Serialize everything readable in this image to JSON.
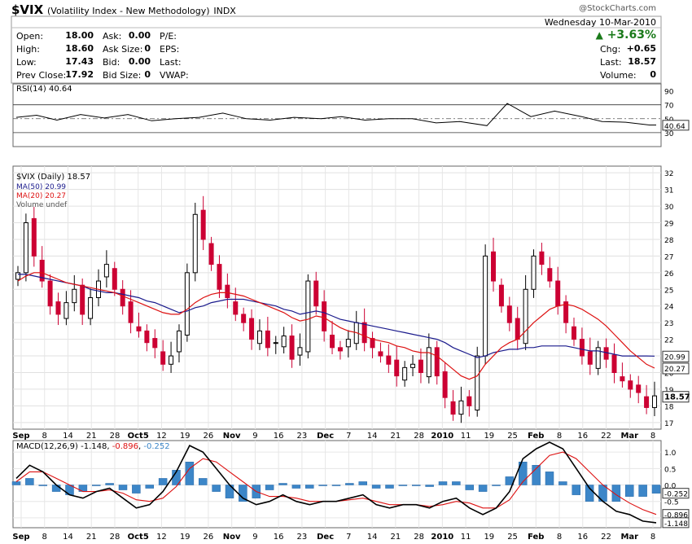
{
  "header": {
    "symbol": "$VIX",
    "name": "(Volatility Index - New Methodology)",
    "exchange": "INDX",
    "brand": "@StockCharts.com",
    "date": "Wednesday  10-Mar-2010",
    "change_pct": "+3.63%",
    "quote_left": [
      {
        "label": "Open:",
        "value": "18.00"
      },
      {
        "label": "High:",
        "value": "18.60"
      },
      {
        "label": "Low:",
        "value": "17.43"
      },
      {
        "label": "Prev Close:",
        "value": "17.92"
      }
    ],
    "quote_mid": [
      {
        "label": "Ask:",
        "value": "0.00"
      },
      {
        "label": "Ask Size:",
        "value": "0"
      },
      {
        "label": "Bid:",
        "value": "0.00"
      },
      {
        "label": "Bid Size:",
        "value": "0"
      }
    ],
    "quote_mid2": [
      "P/E:",
      "EPS:",
      "Last:",
      "VWAP:"
    ],
    "quote_right": [
      {
        "label": "Chg:",
        "value": "+0.65"
      },
      {
        "label": "Last:",
        "value": "18.57"
      },
      {
        "label": "Volume:",
        "value": "0"
      }
    ]
  },
  "colors": {
    "up": "#000000",
    "down": "#cc0033",
    "ma50": "#1a1a8c",
    "ma20": "#dd1111",
    "macd": "#000000",
    "signal": "#dd1111",
    "hist": "#3c86c8",
    "rsi": "#000000"
  },
  "chart_data": [
    {
      "type": "line",
      "title": "RSI(14) 40.64",
      "ylim": [
        10,
        100
      ],
      "yticks": [
        90,
        70,
        50,
        30
      ],
      "levels": [
        70,
        50,
        30
      ],
      "last_label": "40.64",
      "x": [
        "2009-09-02",
        "2009-09-08",
        "2009-09-14",
        "2009-09-21",
        "2009-09-28",
        "2009-10-05",
        "2009-10-12",
        "2009-10-19",
        "2009-10-26",
        "2009-11-02",
        "2009-11-09",
        "2009-11-16",
        "2009-11-23",
        "2009-12-01",
        "2009-12-07",
        "2009-12-14",
        "2009-12-21",
        "2009-12-28",
        "2010-01-04",
        "2010-01-11",
        "2010-01-19",
        "2010-01-25",
        "2010-02-01",
        "2010-02-08",
        "2010-02-16",
        "2010-02-22",
        "2010-03-01",
        "2010-03-08",
        "2010-03-10"
      ],
      "values": [
        52,
        55,
        48,
        56,
        51,
        56,
        47,
        50,
        52,
        58,
        50,
        48,
        52,
        50,
        53,
        48,
        50,
        50,
        44,
        46,
        40,
        72,
        53,
        61,
        53,
        46,
        45,
        41,
        41
      ]
    },
    {
      "type": "candlestick",
      "title": "$VIX (Daily) 18.57",
      "ylim": [
        16.6,
        32.4
      ],
      "yticks": [
        17,
        18,
        19,
        20,
        21,
        22,
        23,
        24,
        25,
        26,
        27,
        28,
        29,
        30,
        31,
        32
      ],
      "legend": [
        {
          "name": "MA(50) 20.99",
          "color": "#1a1a8c"
        },
        {
          "name": "MA(20) 20.27",
          "color": "#dd1111"
        },
        {
          "name": "Volume undef",
          "color": "#555555"
        }
      ],
      "value_labels": [
        {
          "text": "20.99",
          "value": 20.99
        },
        {
          "text": "20.27",
          "value": 20.27
        },
        {
          "text": "18.57",
          "value": 18.57
        }
      ],
      "x_labels": [
        "Sep",
        "8",
        "14",
        "21",
        "28",
        "Oct5",
        "12",
        "19",
        "26",
        "Nov",
        "9",
        "16",
        "23",
        "Dec",
        "7",
        "14",
        "21",
        "28",
        "2010",
        "11",
        "19",
        "25",
        "Feb",
        "8",
        "16",
        "22",
        "Mar",
        "8"
      ],
      "closes": [
        26.0,
        29.0,
        27.0,
        25.5,
        24.0,
        23.5,
        24.2,
        25.0,
        23.5,
        24.5,
        25.5,
        26.5,
        25.0,
        24.0,
        23.0,
        22.5,
        21.8,
        21.5,
        20.5,
        21.0,
        22.5,
        26.0,
        29.5,
        28.0,
        26.5,
        25.0,
        24.5,
        23.5,
        23.0,
        22.0,
        22.5,
        21.5,
        21.8,
        22.2,
        20.8,
        21.5,
        25.5,
        24.0,
        22.5,
        21.5,
        21.3,
        22.0,
        23.0,
        21.8,
        21.5,
        21.0,
        20.5,
        19.8,
        20.3,
        20.5,
        20.0,
        21.5,
        19.8,
        18.5,
        17.5,
        18.3,
        18.0,
        21.0,
        27.0,
        25.5,
        24.0,
        23.0,
        22.0,
        25.0,
        27.0,
        26.5,
        25.5,
        24.0,
        23.0,
        22.0,
        21.0,
        20.5,
        21.5,
        20.8,
        20.0,
        19.5,
        19.0,
        18.8,
        17.9,
        18.6
      ],
      "ma50": [
        25.9,
        25.9,
        25.8,
        25.7,
        25.6,
        25.5,
        25.4,
        25.3,
        25.2,
        25.0,
        24.9,
        24.8,
        24.8,
        24.7,
        24.6,
        24.5,
        24.3,
        24.2,
        24.0,
        23.8,
        23.6,
        23.7,
        23.9,
        24.0,
        24.2,
        24.3,
        24.4,
        24.4,
        24.4,
        24.3,
        24.2,
        24.1,
        24.0,
        23.8,
        23.7,
        23.5,
        23.6,
        23.7,
        23.6,
        23.4,
        23.2,
        23.1,
        23.0,
        22.9,
        22.8,
        22.7,
        22.6,
        22.5,
        22.4,
        22.3,
        22.2,
        22.1,
        22.0,
        21.8,
        21.5,
        21.3,
        21.1,
        20.9,
        21.0,
        21.2,
        21.3,
        21.4,
        21.4,
        21.5,
        21.5,
        21.6,
        21.6,
        21.6,
        21.6,
        21.5,
        21.4,
        21.3,
        21.3,
        21.2,
        21.1,
        21.0,
        21.0,
        21.0,
        21.0,
        20.99
      ],
      "ma20": [
        25.5,
        25.8,
        26.0,
        26.0,
        25.8,
        25.6,
        25.4,
        25.3,
        25.2,
        25.1,
        25.0,
        24.9,
        24.8,
        24.6,
        24.4,
        24.2,
        24.0,
        23.8,
        23.6,
        23.5,
        23.5,
        23.8,
        24.2,
        24.5,
        24.7,
        24.8,
        24.8,
        24.7,
        24.6,
        24.4,
        24.2,
        24.0,
        23.8,
        23.6,
        23.3,
        23.1,
        23.2,
        23.4,
        23.3,
        23.0,
        22.7,
        22.5,
        22.4,
        22.2,
        22.0,
        21.9,
        21.8,
        21.6,
        21.5,
        21.3,
        21.2,
        21.2,
        21.0,
        20.6,
        20.2,
        19.8,
        19.6,
        19.8,
        20.5,
        21.0,
        21.5,
        21.8,
        22.0,
        22.5,
        23.0,
        23.4,
        23.8,
        24.0,
        24.1,
        24.0,
        23.8,
        23.5,
        23.2,
        22.8,
        22.3,
        21.8,
        21.3,
        20.9,
        20.5,
        20.27
      ]
    },
    {
      "type": "line",
      "title": "MACD(12,26,9) -1.148, -0.896, -0.252",
      "title_parts": [
        "MACD(12,26,9) -1.148, ",
        "-0.896",
        ", ",
        "-0.252"
      ],
      "ylim": [
        -1.3,
        1.35
      ],
      "yticks": [
        1.0,
        0.5,
        0.0,
        -0.5,
        -1.0
      ],
      "ytick_labels": [
        "1.0",
        "0.5",
        "0.0",
        "-0.5",
        "-1.0"
      ],
      "value_labels": [
        {
          "text": "-0.252",
          "value": -0.252
        },
        {
          "text": "-0.896",
          "value": -0.896
        },
        {
          "text": "-1.148",
          "value": -1.148
        }
      ],
      "x_labels": [
        "Sep",
        "8",
        "14",
        "21",
        "28",
        "Oct5",
        "12",
        "19",
        "26",
        "Nov",
        "9",
        "16",
        "23",
        "Dec",
        "7",
        "14",
        "21",
        "28",
        "2010",
        "11",
        "19",
        "25",
        "Feb",
        "8",
        "16",
        "22",
        "Mar",
        "8"
      ],
      "macd": [
        0.2,
        0.6,
        0.4,
        0.0,
        -0.3,
        -0.4,
        -0.2,
        -0.1,
        -0.4,
        -0.7,
        -0.6,
        -0.2,
        0.4,
        1.2,
        1.0,
        0.5,
        0.0,
        -0.4,
        -0.6,
        -0.5,
        -0.3,
        -0.5,
        -0.6,
        -0.5,
        -0.5,
        -0.4,
        -0.3,
        -0.6,
        -0.7,
        -0.6,
        -0.6,
        -0.7,
        -0.5,
        -0.4,
        -0.7,
        -0.9,
        -0.7,
        -0.2,
        0.8,
        1.1,
        1.3,
        1.1,
        0.5,
        -0.1,
        -0.5,
        -0.8,
        -0.9,
        -1.1,
        -1.148
      ],
      "signal": [
        0.1,
        0.4,
        0.4,
        0.2,
        0.0,
        -0.2,
        -0.2,
        -0.15,
        -0.25,
        -0.45,
        -0.5,
        -0.4,
        -0.05,
        0.5,
        0.8,
        0.7,
        0.4,
        0.1,
        -0.2,
        -0.35,
        -0.35,
        -0.4,
        -0.5,
        -0.5,
        -0.5,
        -0.45,
        -0.4,
        -0.5,
        -0.6,
        -0.6,
        -0.6,
        -0.65,
        -0.6,
        -0.5,
        -0.55,
        -0.7,
        -0.7,
        -0.45,
        0.1,
        0.5,
        0.9,
        1.0,
        0.8,
        0.4,
        0.0,
        -0.3,
        -0.55,
        -0.75,
        -0.896
      ]
    }
  ]
}
